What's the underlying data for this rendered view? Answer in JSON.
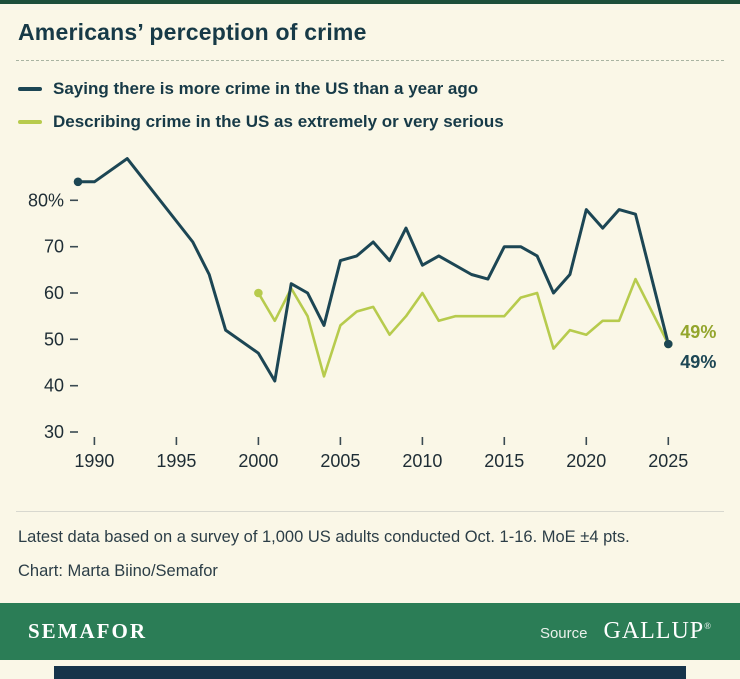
{
  "title": "Americans’ perception of crime",
  "legend": [
    {
      "label": "Saying there is more crime in the US than a year ago",
      "color": "#1c4654"
    },
    {
      "label": "Describing crime in the US as extremely or very serious",
      "color": "#b7cb4d"
    }
  ],
  "chart_data": {
    "type": "line",
    "title": "Americans’ perception of crime",
    "xlabel": "",
    "ylabel": "",
    "xlim": [
      1989,
      2026.2
    ],
    "ylim": [
      30,
      90
    ],
    "grid": false,
    "legend_position": "top-left",
    "x_ticks": [
      1990,
      1995,
      2000,
      2005,
      2010,
      2015,
      2020,
      2025
    ],
    "y_ticks": [
      80,
      70,
      60,
      50,
      40,
      30
    ],
    "y_tick_labels": [
      "80%",
      "70",
      "60",
      "50",
      "40",
      "30"
    ],
    "series": [
      {
        "name": "Describing crime in the US as extremely or very serious",
        "color": "#b7cb4d",
        "width": 2.6,
        "end_label": "49%",
        "end_label_color": "#93a52c",
        "end_label_dy": -6,
        "points": [
          [
            2000,
            60
          ],
          [
            2001,
            54
          ],
          [
            2002,
            61
          ],
          [
            2003,
            55
          ],
          [
            2004,
            42
          ],
          [
            2005,
            53
          ],
          [
            2006,
            56
          ],
          [
            2007,
            57
          ],
          [
            2008,
            51
          ],
          [
            2009,
            55
          ],
          [
            2010,
            60
          ],
          [
            2011,
            54
          ],
          [
            2012,
            55
          ],
          [
            2013,
            55
          ],
          [
            2014,
            55
          ],
          [
            2015,
            55
          ],
          [
            2016,
            59
          ],
          [
            2017,
            60
          ],
          [
            2018,
            48
          ],
          [
            2019,
            52
          ],
          [
            2020,
            51
          ],
          [
            2021,
            54
          ],
          [
            2022,
            54
          ],
          [
            2023,
            63
          ],
          [
            2025,
            49
          ]
        ]
      },
      {
        "name": "Saying there is more crime in the US than a year ago",
        "color": "#1c4654",
        "width": 3,
        "end_label": "49%",
        "end_label_color": "#1c4654",
        "end_label_dy": 24,
        "points": [
          [
            1989,
            84
          ],
          [
            1990,
            84
          ],
          [
            1992,
            89
          ],
          [
            1996,
            71
          ],
          [
            1997,
            64
          ],
          [
            1998,
            52
          ],
          [
            2000,
            47
          ],
          [
            2001,
            41
          ],
          [
            2002,
            62
          ],
          [
            2003,
            60
          ],
          [
            2004,
            53
          ],
          [
            2005,
            67
          ],
          [
            2006,
            68
          ],
          [
            2007,
            71
          ],
          [
            2008,
            67
          ],
          [
            2009,
            74
          ],
          [
            2010,
            66
          ],
          [
            2011,
            68
          ],
          [
            2013,
            64
          ],
          [
            2014,
            63
          ],
          [
            2015,
            70
          ],
          [
            2016,
            70
          ],
          [
            2017,
            68
          ],
          [
            2018,
            60
          ],
          [
            2019,
            64
          ],
          [
            2020,
            78
          ],
          [
            2021,
            74
          ],
          [
            2022,
            78
          ],
          [
            2023,
            77
          ],
          [
            2025,
            49
          ]
        ]
      }
    ]
  },
  "footnotes": [
    "Latest data based on a survey of 1,000 US adults conducted Oct. 1-16. MoE ±4 pts.",
    "Chart: Marta Biino/Semafor"
  ],
  "footer": {
    "brand": "SEMAFOR",
    "source_label": "Source",
    "source_name": "GALLUP",
    "reg": "®"
  },
  "colors": {
    "background": "#faf7e7",
    "navy_line": "#1c4654",
    "green_line": "#b7cb4d",
    "brand_bar": "#2b7d56",
    "bottom_strip": "#16344a",
    "top_border": "#1d4f3a"
  }
}
